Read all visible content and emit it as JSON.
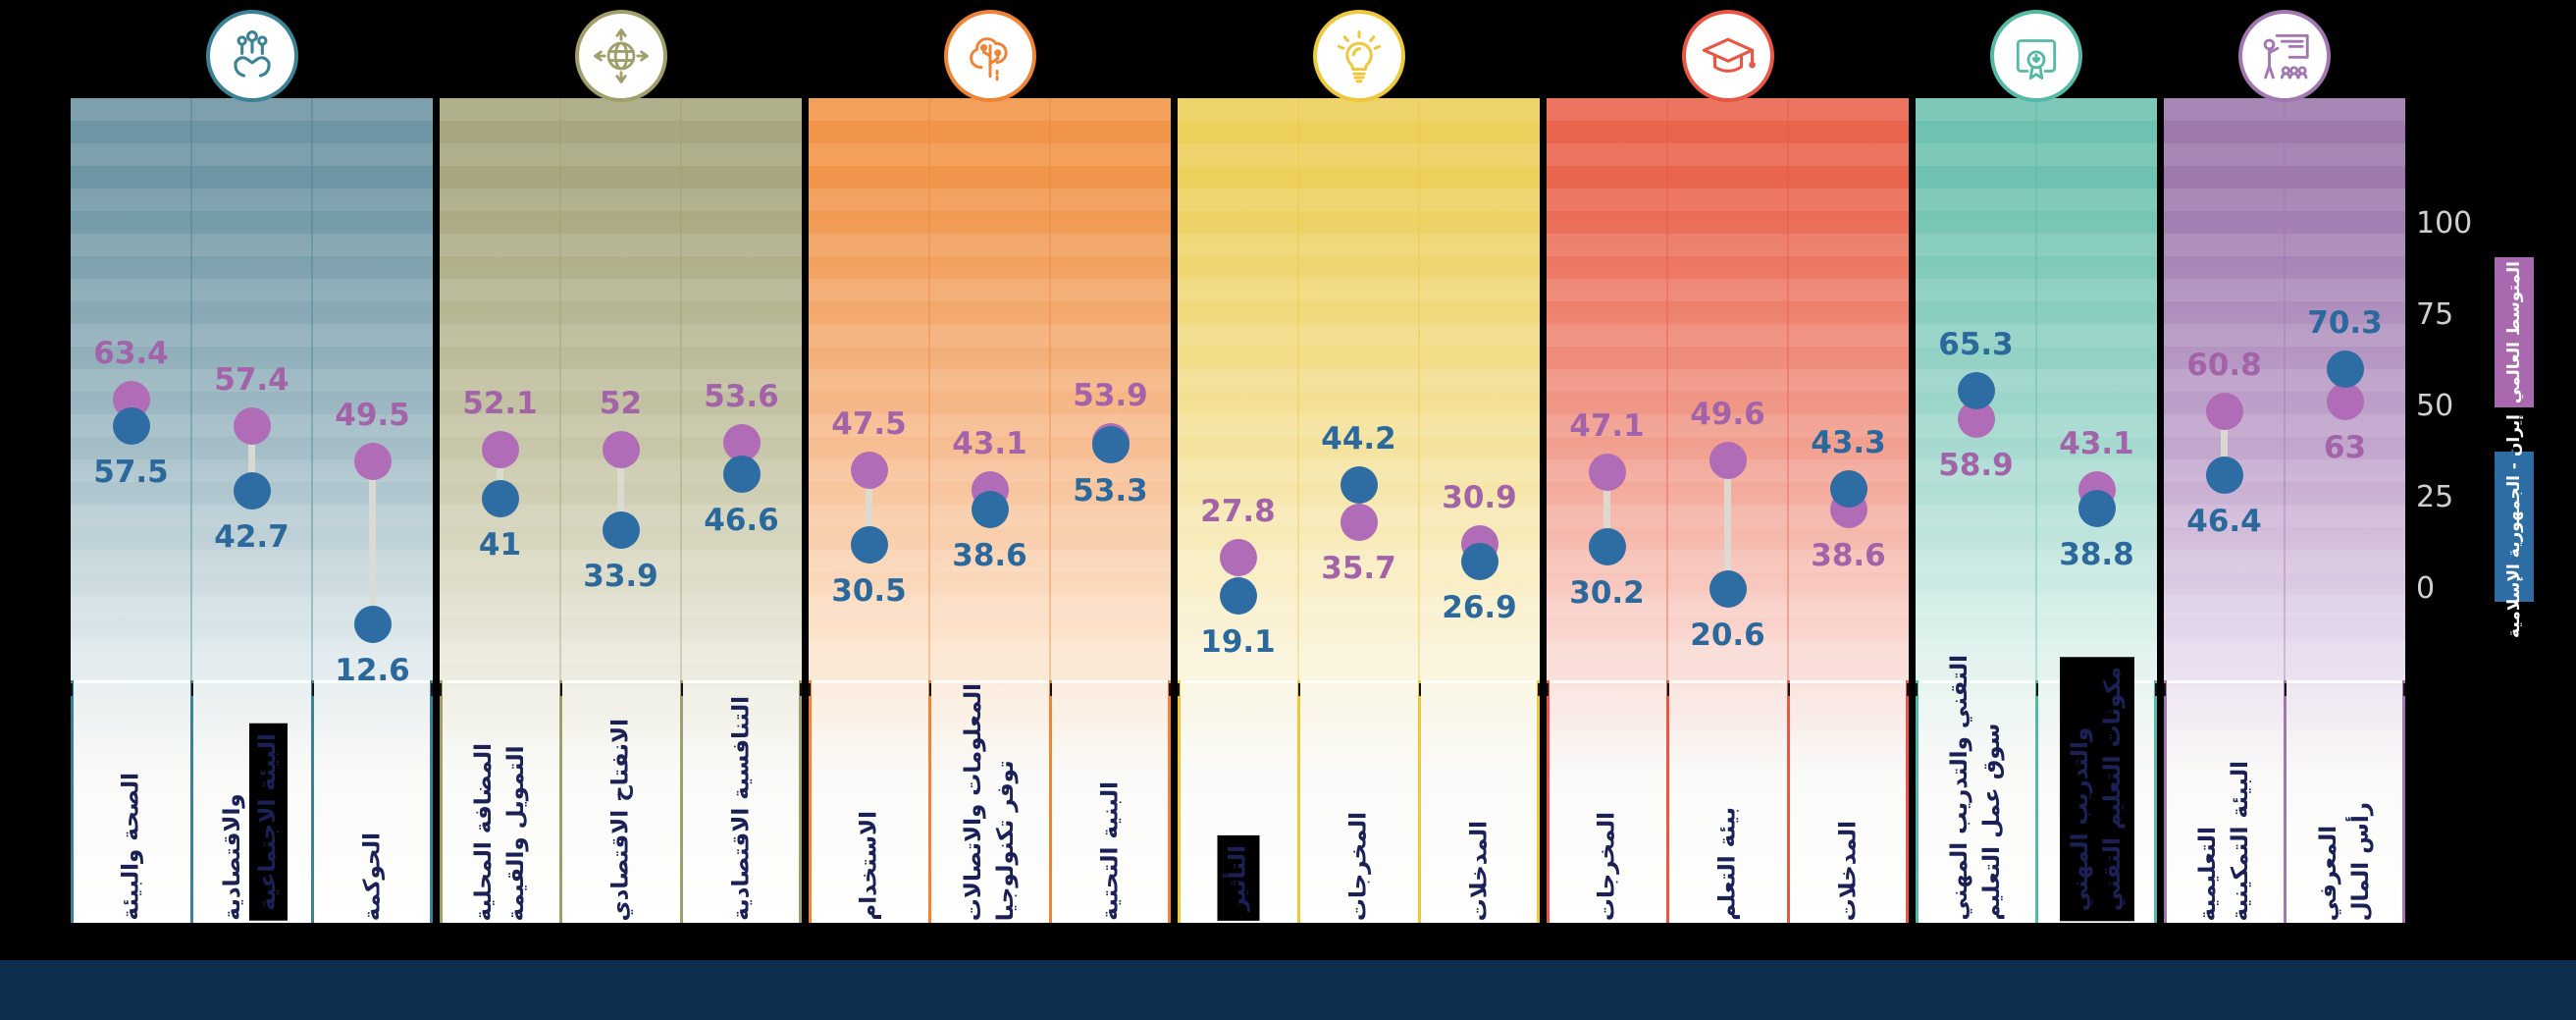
{
  "legend": {
    "global": {
      "label": "المتوسط العالمي",
      "color": "#a869ae"
    },
    "iran": {
      "label": "إيران - الجمهورية الإسلامية",
      "color": "#2e6da4"
    }
  },
  "axis": {
    "ticks": [
      {
        "label": "100",
        "y": 228
      },
      {
        "label": "75",
        "y": 321
      },
      {
        "label": "50",
        "y": 414
      },
      {
        "label": "25",
        "y": 507
      },
      {
        "label": "0",
        "y": 600
      }
    ]
  },
  "chart_data": {
    "type": "dumbbell",
    "ylim": [
      0,
      100
    ],
    "series": [
      {
        "name": "المتوسط العالمي",
        "color": "#b06cb6"
      },
      {
        "name": "إيران - الجمهورية الإسلامية",
        "color": "#2e6da4"
      }
    ],
    "groups": [
      {
        "icon": "community-in-hands-icon",
        "color": "#3c8296",
        "panel": {
          "top": "#6e95a3",
          "mid": "#a7c0c9",
          "light": "#dde8eb"
        },
        "cols": [
          {
            "label_lines": [
              {
                "text": "الصحة والبيئة"
              }
            ],
            "global": 63.4,
            "iran": 57.5,
            "global_str": "63.4",
            "iran_str": "57.5"
          },
          {
            "label_lines": [
              {
                "text": "البيئة الاجتماعية",
                "boxed": true
              },
              {
                "text": "والاقتصادية"
              }
            ],
            "global": 57.4,
            "iran": 42.7,
            "global_str": "57.4",
            "iran_str": "42.7"
          },
          {
            "label_lines": [
              {
                "text": "الحوكمة"
              }
            ],
            "global": 49.5,
            "iran": 12.6,
            "global_str": "49.5",
            "iran_str": "12.6"
          }
        ]
      },
      {
        "icon": "global-openness-icon",
        "color": "#a09f6c",
        "panel": {
          "top": "#a7a67e",
          "mid": "#c9c8ab",
          "light": "#e8e7d8"
        },
        "cols": [
          {
            "label_lines": [
              {
                "text": "التمويل والقيمة"
              },
              {
                "text": "المضافة المحلية"
              }
            ],
            "global": 52.1,
            "iran": 41,
            "global_str": "52.1",
            "iran_str": "41"
          },
          {
            "label_lines": [
              {
                "text": "الانفتاح الاقتصادي"
              }
            ],
            "global": 52,
            "iran": 33.9,
            "global_str": "52",
            "iran_str": "33.9"
          },
          {
            "label_lines": [
              {
                "text": "التنافسية الاقتصادية"
              }
            ],
            "global": 53.6,
            "iran": 46.6,
            "global_str": "53.6",
            "iran_str": "46.6"
          }
        ]
      },
      {
        "icon": "technology-brain-icon",
        "color": "#ee8436",
        "panel": {
          "top": "#f0954a",
          "mid": "#f7c096",
          "light": "#fce4cd"
        },
        "cols": [
          {
            "label_lines": [
              {
                "text": "الاستخدام"
              }
            ],
            "global": 47.5,
            "iran": 30.5,
            "global_str": "47.5",
            "iran_str": "30.5"
          },
          {
            "label_lines": [
              {
                "text": "توفر تكنولوجيا"
              },
              {
                "text": "المعلومات والاتصالات"
              }
            ],
            "global": 43.1,
            "iran": 38.6,
            "global_str": "43.1",
            "iran_str": "38.6"
          },
          {
            "label_lines": [
              {
                "text": "البنية التحتية"
              }
            ],
            "global": 53.9,
            "iran": 53.3,
            "global_str": "53.9",
            "iran_str": "53.3"
          }
        ]
      },
      {
        "icon": "innovation-lightbulb-icon",
        "color": "#eec83b",
        "panel": {
          "top": "#edcf5c",
          "mid": "#f5e4a3",
          "light": "#fbf3d8"
        },
        "cols": [
          {
            "label_lines": [
              {
                "text": "التأثير"
              }
            ],
            "label_boxed": true,
            "global": 27.8,
            "iran": 19.1,
            "global_str": "27.8",
            "iran_str": "19.1"
          },
          {
            "label_lines": [
              {
                "text": "المخرجات"
              }
            ],
            "global": 35.7,
            "iran": 44.2,
            "global_str": "35.7",
            "iran_str": "44.2"
          },
          {
            "label_lines": [
              {
                "text": "المدخلات"
              }
            ],
            "global": 30.9,
            "iran": 26.9,
            "global_str": "30.9",
            "iran_str": "26.9"
          }
        ]
      },
      {
        "icon": "education-graduation-icon",
        "color": "#e85744",
        "panel": {
          "top": "#e9654e",
          "mid": "#f2a394",
          "light": "#fad8d1"
        },
        "cols": [
          {
            "label_lines": [
              {
                "text": "المخرجات"
              }
            ],
            "global": 47.1,
            "iran": 30.2,
            "global_str": "47.1",
            "iran_str": "30.2"
          },
          {
            "label_lines": [
              {
                "text": "بيئة التعلم"
              }
            ],
            "global": 49.6,
            "iran": 20.6,
            "global_str": "49.6",
            "iran_str": "20.6"
          },
          {
            "label_lines": [
              {
                "text": "المدخلات"
              }
            ],
            "global": 38.6,
            "iran": 43.3,
            "global_str": "38.6",
            "iran_str": "43.3"
          }
        ]
      },
      {
        "icon": "vocational-certificate-icon",
        "color": "#54baa6",
        "panel": {
          "top": "#6fc2b2",
          "mid": "#a9dbd1",
          "light": "#ddf1ec"
        },
        "cols": [
          {
            "label_lines": [
              {
                "text": "سوق عمل التعليم"
              },
              {
                "text": "التقني والتدريب المهني"
              }
            ],
            "global": 58.9,
            "iran": 65.3,
            "global_str": "58.9",
            "iran_str": "65.3"
          },
          {
            "label_lines": [
              {
                "text": "مكونات التعليم التقني"
              },
              {
                "text": "والتدريب المهني"
              }
            ],
            "label_boxed": true,
            "global": 43.1,
            "iran": 38.8,
            "global_str": "43.1",
            "iran_str": "38.8"
          }
        ]
      },
      {
        "icon": "teaching-presentation-icon",
        "color": "#a276b0",
        "panel": {
          "top": "#9d79ae",
          "mid": "#c4a9cf",
          "light": "#e6d9ec"
        },
        "cols": [
          {
            "label_lines": [
              {
                "text": "البيئة التمكينية"
              },
              {
                "text": "التعليمية"
              }
            ],
            "global": 60.8,
            "iran": 46.4,
            "global_str": "60.8",
            "iran_str": "46.4"
          },
          {
            "label_lines": [
              {
                "text": "رأس المال"
              },
              {
                "text": "المعرفي"
              }
            ],
            "global": 63,
            "iran": 70.3,
            "global_str": "63",
            "iran_str": "70.3"
          }
        ]
      }
    ],
    "value_colors": {
      "global_text": "#a263a9",
      "iran_text": "#2b689c"
    }
  }
}
